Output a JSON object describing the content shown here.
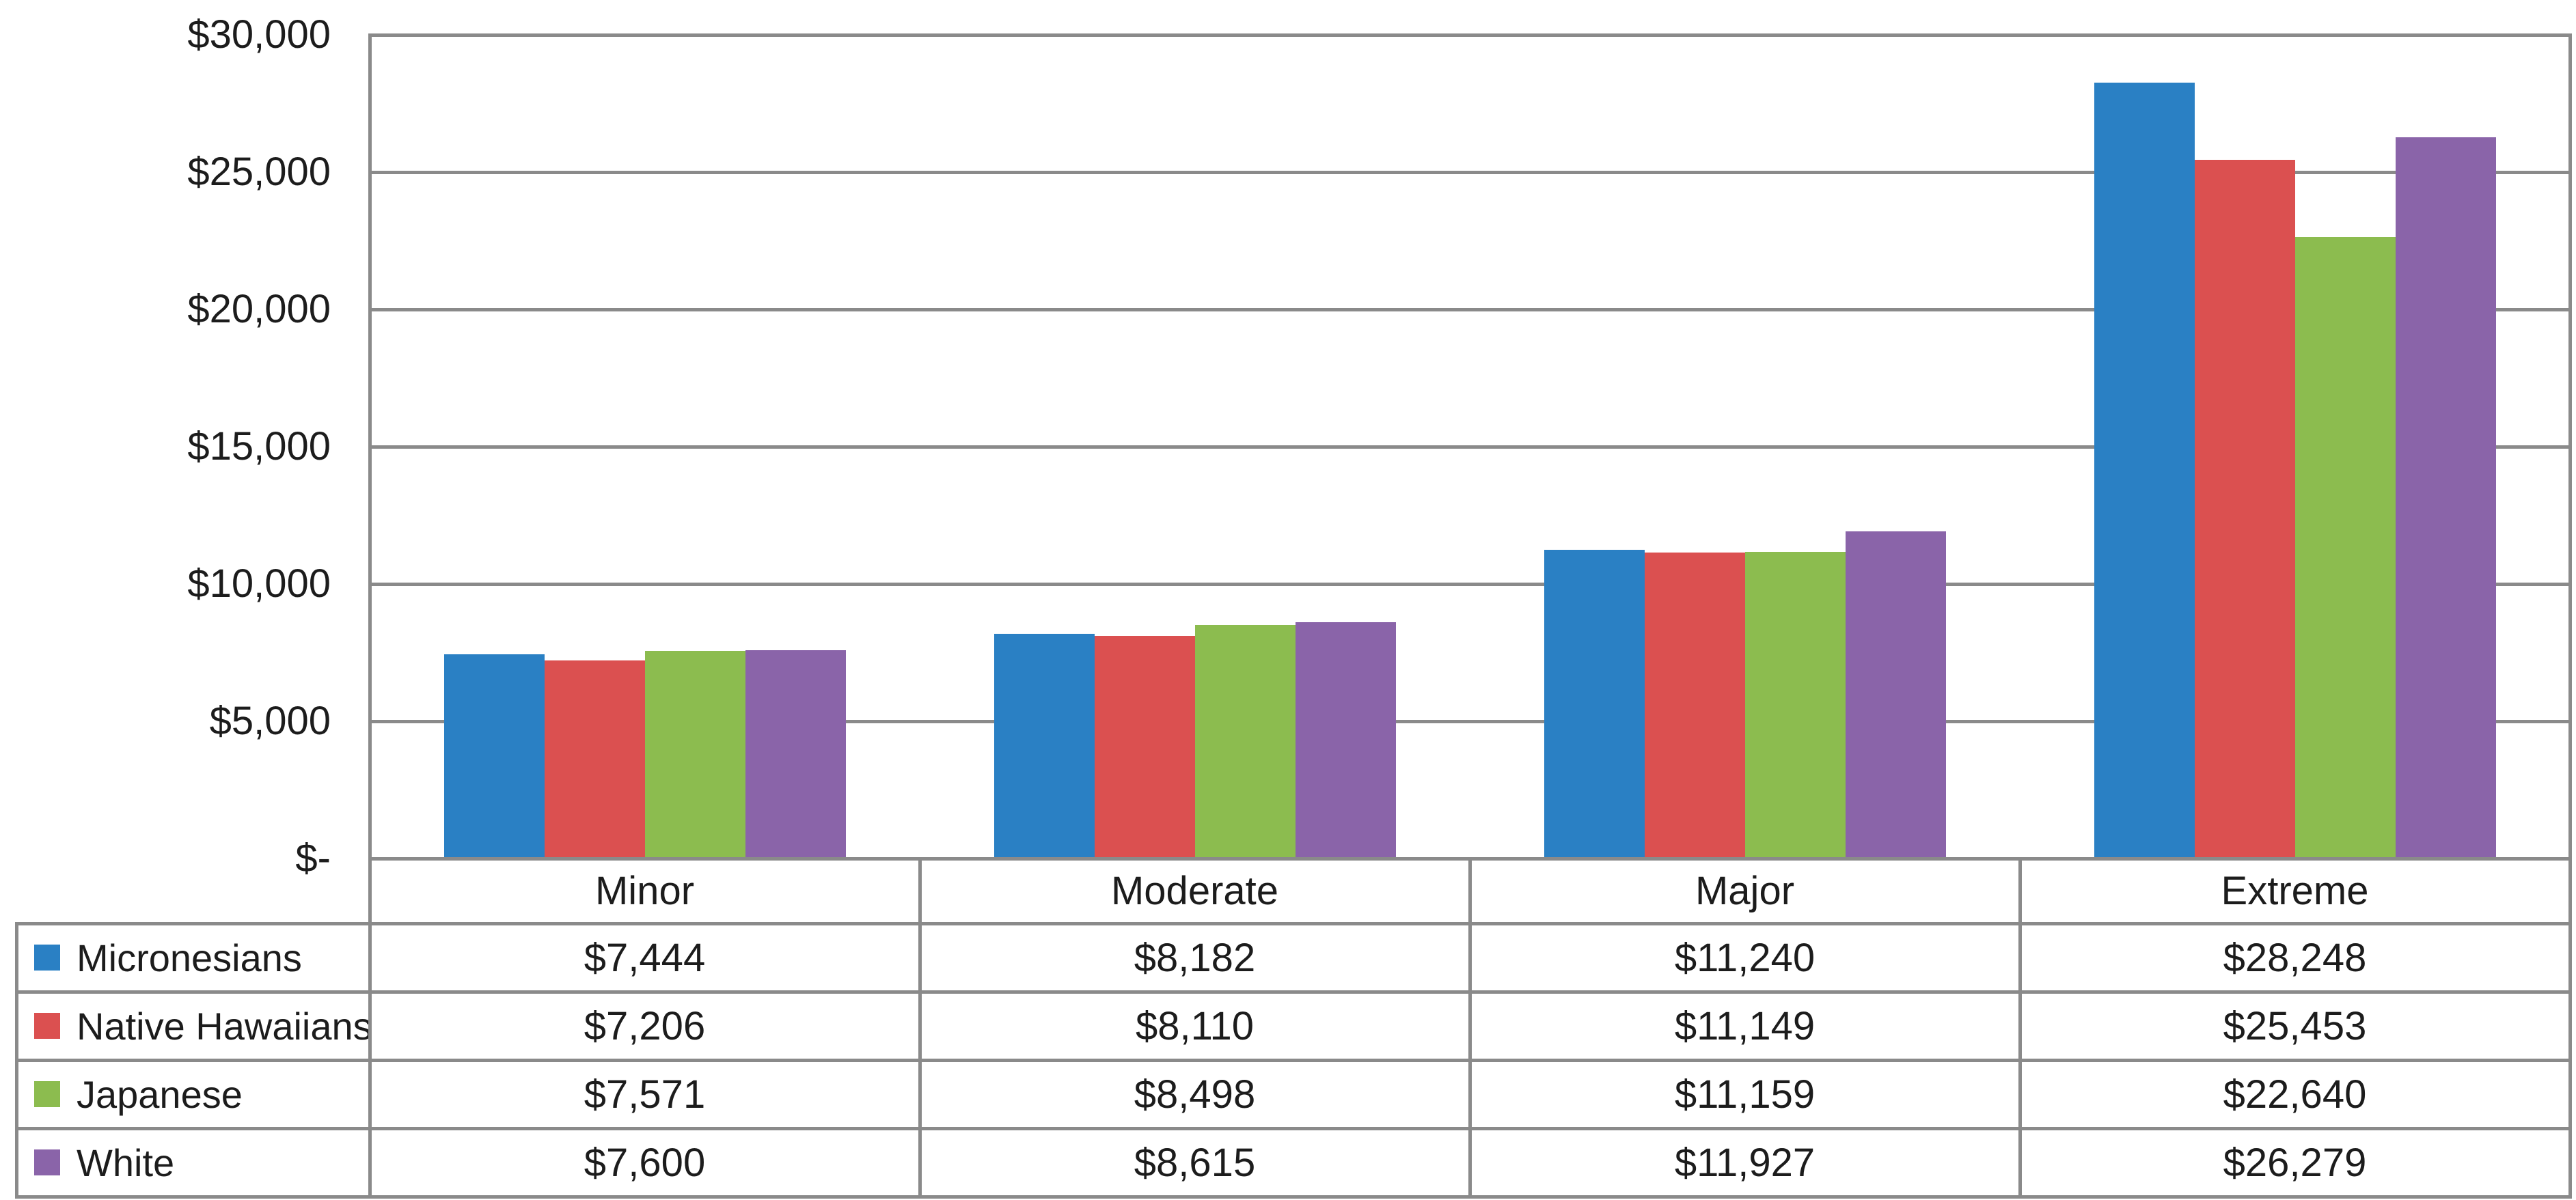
{
  "chart_data": {
    "type": "bar",
    "title": "",
    "categories": [
      "Minor",
      "Moderate",
      "Major",
      "Extreme"
    ],
    "series": [
      {
        "name": "Micronesians",
        "color": "#2a80c4",
        "values": [
          7444,
          8182,
          11240,
          28248
        ],
        "value_labels": [
          "$7,444",
          "$8,182",
          "$11,240",
          "$28,248"
        ]
      },
      {
        "name": "Native Hawaiians",
        "color": "#db5050",
        "values": [
          7206,
          8110,
          11149,
          25453
        ],
        "value_labels": [
          "$7,206",
          "$8,110",
          "$11,149",
          "$25,453"
        ]
      },
      {
        "name": "Japanese",
        "color": "#8cbc4f",
        "values": [
          7571,
          8498,
          11159,
          22640
        ],
        "value_labels": [
          "$7,571",
          "$8,498",
          "$11,159",
          "$22,640"
        ]
      },
      {
        "name": "White",
        "color": "#8a64a9",
        "values": [
          7600,
          8615,
          11927,
          26279
        ],
        "value_labels": [
          "$7,600",
          "$8,615",
          "$11,927",
          "$26,279"
        ]
      }
    ],
    "y_axis": {
      "min": 0,
      "max": 30000,
      "tick_interval": 5000,
      "tick_labels_top_to_bottom": [
        "$30,000",
        "$25,000",
        "$20,000",
        "$15,000",
        "$10,000",
        "$5,000",
        "$-"
      ]
    },
    "xlabel": "",
    "ylabel": "",
    "grid": true,
    "legend_position": "data-table-left-column",
    "data_table_shown": true
  },
  "colors": {
    "background": "#ffffff",
    "gridline": "#8a8a8a",
    "table_border": "#8a8a8a",
    "text": "#1c1c1c",
    "series": [
      "#2a80c4",
      "#db5050",
      "#8cbc4f",
      "#8a64a9"
    ]
  }
}
